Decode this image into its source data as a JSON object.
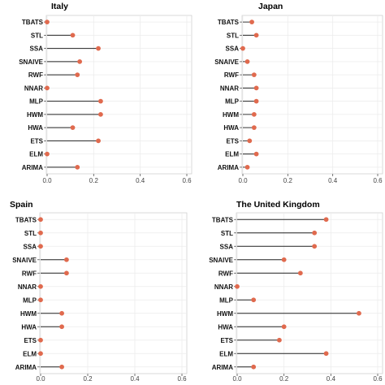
{
  "chart_data": [
    {
      "type": "lollipop",
      "title": "Italy",
      "categories": [
        "TBATS",
        "STL",
        "SSA",
        "SNAIVE",
        "RWF",
        "NNAR",
        "MLP",
        "HWM",
        "HWA",
        "ETS",
        "ELM",
        "ARIMA"
      ],
      "values": [
        0.0,
        0.11,
        0.22,
        0.14,
        0.13,
        0.0,
        0.23,
        0.23,
        0.11,
        0.22,
        0.0,
        0.13
      ],
      "xticks": [
        "0.0",
        "0.2",
        "0.4",
        "0.6"
      ],
      "xlim": [
        0,
        0.6
      ],
      "color": "#e06a4e"
    },
    {
      "type": "lollipop",
      "title": "Japan",
      "categories": [
        "TBATS",
        "STL",
        "SSA",
        "SNAIVE",
        "RWF",
        "NNAR",
        "MLP",
        "HWM",
        "HWA",
        "ETS",
        "ELM",
        "ARIMA"
      ],
      "values": [
        0.04,
        0.06,
        0.0,
        0.02,
        0.05,
        0.06,
        0.06,
        0.05,
        0.05,
        0.03,
        0.06,
        0.02
      ],
      "xticks": [
        "0.0",
        "0.2",
        "0.4",
        "0.6"
      ],
      "xlim": [
        0,
        0.6
      ],
      "color": "#e06a4e"
    },
    {
      "type": "lollipop",
      "title": "Spain",
      "categories": [
        "TBATS",
        "STL",
        "SSA",
        "SNAIVE",
        "RWF",
        "NNAR",
        "MLP",
        "HWM",
        "HWA",
        "ETS",
        "ELM",
        "ARIMA"
      ],
      "values": [
        0.0,
        0.0,
        0.0,
        0.11,
        0.11,
        0.0,
        0.0,
        0.09,
        0.09,
        0.0,
        0.0,
        0.09
      ],
      "xticks": [
        "0.0",
        "0.2",
        "0.4",
        "0.6"
      ],
      "xlim": [
        0,
        0.6
      ],
      "color": "#e06a4e"
    },
    {
      "type": "lollipop",
      "title": "The United Kingdom",
      "categories": [
        "TBATS",
        "STL",
        "SSA",
        "SNAIVE",
        "RWF",
        "NNAR",
        "MLP",
        "HWM",
        "HWA",
        "ETS",
        "ELM",
        "ARIMA"
      ],
      "values": [
        0.38,
        0.33,
        0.33,
        0.2,
        0.27,
        0.0,
        0.07,
        0.52,
        0.2,
        0.18,
        0.38,
        0.07
      ],
      "xticks": [
        "0.0",
        "0.2",
        "0.4",
        "0.6"
      ],
      "xlim": [
        0,
        0.6
      ],
      "color": "#e06a4e"
    }
  ]
}
